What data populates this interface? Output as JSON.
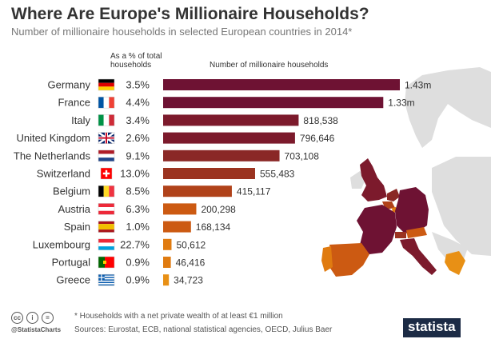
{
  "chart_data": {
    "type": "bar",
    "title": "Where Are Europe's Millionaire Households?",
    "subtitle": "Number of millionaire households in selected European countries in 2014*",
    "pct_header": "As a % of total households",
    "value_header": "Number of millionaire households",
    "categories": [
      "Germany",
      "France",
      "Italy",
      "United Kingdom",
      "The Netherlands",
      "Switzerland",
      "Belgium",
      "Austria",
      "Spain",
      "Luxembourg",
      "Portugal",
      "Greece"
    ],
    "flags": [
      "de",
      "fr",
      "it",
      "gb",
      "nl",
      "ch",
      "be",
      "at",
      "es",
      "lu",
      "pt",
      "gr"
    ],
    "values": [
      1430000,
      1330000,
      818538,
      796646,
      703108,
      555483,
      415117,
      200298,
      168134,
      50612,
      46416,
      34723
    ],
    "value_labels": [
      "1.43m",
      "1.33m",
      "818,538",
      "796,646",
      "703,108",
      "555,483",
      "415,117",
      "200,298",
      "168,134",
      "50,612",
      "46,416",
      "34,723"
    ],
    "pct_labels": [
      "3.5%",
      "4.4%",
      "3.4%",
      "2.6%",
      "9.1%",
      "13.0%",
      "8.5%",
      "6.3%",
      "1.0%",
      "22.7%",
      "0.9%",
      "0.9%"
    ],
    "bar_colors": [
      "#6e1233",
      "#6e1233",
      "#7c1a2c",
      "#7c1a2c",
      "#8a2826",
      "#9b3320",
      "#b0421a",
      "#cc5a12",
      "#cc5a12",
      "#e07b10",
      "#e07b10",
      "#e89015"
    ],
    "xlim": [
      0,
      1430000
    ]
  },
  "footer": {
    "footnote": "* Households with a net private wealth of at least €1 million",
    "sources": "Sources: Eurostat, ECB, national statistical agencies, OECD, Julius Baer",
    "handle": "@StatistaCharts",
    "badges": [
      "cc",
      "i",
      "="
    ],
    "logo": "statista"
  },
  "map": {
    "land_color": "#dedede",
    "colored_countries": [
      "germany",
      "france",
      "italy",
      "united-kingdom",
      "netherlands",
      "switzerland",
      "belgium",
      "austria",
      "spain",
      "luxembourg",
      "portugal",
      "greece"
    ]
  }
}
